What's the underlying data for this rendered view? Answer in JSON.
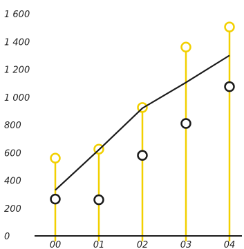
{
  "chart_data": {
    "type": "line",
    "categories": [
      "00",
      "01",
      "02",
      "03",
      "04"
    ],
    "y_ticks": [
      "0",
      "200",
      "400",
      "600",
      "800",
      "1 000",
      "1 200",
      "1 400",
      "1 600"
    ],
    "ylim": [
      0,
      1600
    ],
    "grid": false,
    "series": [
      {
        "kind": "stem",
        "values": [
          560,
          625,
          925,
          1360,
          1505
        ]
      },
      {
        "kind": "line",
        "values": [
          330,
          620,
          920,
          1105,
          1300
        ]
      },
      {
        "kind": "points",
        "values": [
          265,
          260,
          580,
          810,
          1075
        ]
      }
    ]
  },
  "colors": {
    "stem": "#f2d000",
    "line": "#1a1a1a",
    "points": "#1a1a1a",
    "axis": "#1a1a1a"
  }
}
